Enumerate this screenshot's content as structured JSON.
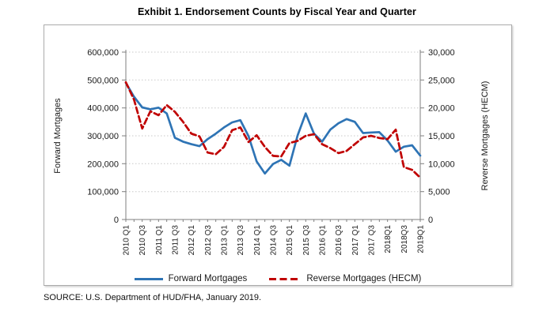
{
  "title": "Exhibit 1. Endorsement Counts by Fiscal Year and Quarter",
  "source": "SOURCE: U.S. Department of HUD/FHA, January 2019.",
  "legend": {
    "forward": "Forward Mortgages",
    "reverse": "Reverse Mortgages (HECM)"
  },
  "colors": {
    "forward": "#2E74B5",
    "reverse": "#C00000",
    "grid": "#c8c8c8",
    "axis": "#7f7f7f",
    "tick_text": "#1a1a1a",
    "box_border": "#ababab"
  },
  "chart_data": {
    "type": "line",
    "title": "Exhibit 1. Endorsement Counts by Fiscal Year and Quarter",
    "grid": "horizontal-dotted",
    "legend_position": "bottom",
    "x_categories": [
      "2010 Q1",
      "2010 Q2",
      "2010 Q3",
      "2010 Q4",
      "2011 Q1",
      "2011 Q2",
      "2011 Q3",
      "2011 Q4",
      "2012 Q1",
      "2012 Q2",
      "2012 Q3",
      "2012 Q4",
      "2013 Q1",
      "2013 Q2",
      "2013 Q3",
      "2013 Q4",
      "2014 Q1",
      "2014 Q2",
      "2014 Q3",
      "2014 Q4",
      "2015 Q1",
      "2015 Q2",
      "2015 Q3",
      "2015 Q4",
      "2016 Q1",
      "2016 Q2",
      "2016 Q3",
      "2016 Q4",
      "2017 Q1",
      "2017 Q2",
      "2017 Q3",
      "2017 Q4",
      "2018 Q1",
      "2018 Q2",
      "2018 Q3",
      "2018 Q4",
      "2019 Q1"
    ],
    "x_tick_labels": [
      "2010 Q1",
      "2010 Q3",
      "2011 Q1",
      "2011 Q3",
      "2012 Q1",
      "2012 Q3",
      "2013 Q1",
      "2013 Q3",
      "2014 Q1",
      "2014 Q3",
      "2015 Q1",
      "2015 Q3",
      "2016 Q1",
      "2016 Q3",
      "2017 Q1",
      "2017 Q3",
      "2018Q1",
      "2018Q3",
      "2019Q1"
    ],
    "left_axis": {
      "label": "Forward Mortgages",
      "min": 0,
      "max": 600000,
      "tick_step": 100000,
      "tick_labels_top_to_bottom": [
        "600,000",
        "500,000",
        "400,000",
        "300,000",
        "200,000",
        "100,000",
        "0"
      ]
    },
    "right_axis": {
      "label": "Reverse Mortgages (HECM)",
      "min": 0,
      "max": 30000,
      "tick_step": 5000,
      "tick_labels_top_to_bottom": [
        "30,000",
        "25,000",
        "20,000",
        "15,000",
        "10,000",
        "5,000",
        "0"
      ]
    },
    "series": [
      {
        "name": "Forward Mortgages",
        "axis": "left",
        "style": "solid",
        "color": "#2E74B5",
        "values": [
          490000,
          440000,
          402000,
          395000,
          401000,
          380000,
          293000,
          279000,
          270000,
          263000,
          288000,
          308000,
          330000,
          348000,
          356000,
          299000,
          208000,
          165000,
          199000,
          214000,
          193000,
          301000,
          380000,
          308000,
          279000,
          322000,
          345000,
          360000,
          350000,
          310000,
          312000,
          313000,
          283000,
          243000,
          261000,
          266000,
          229000
        ]
      },
      {
        "name": "Reverse Mortgages (HECM)",
        "axis": "right",
        "style": "dashed",
        "color": "#C00000",
        "values": [
          24600,
          21500,
          16300,
          19400,
          18700,
          20500,
          19300,
          17500,
          15400,
          14900,
          12000,
          11700,
          13000,
          16000,
          16500,
          13900,
          15100,
          13000,
          11400,
          11300,
          13700,
          14100,
          15000,
          15300,
          13500,
          12800,
          11900,
          12300,
          13500,
          14700,
          15000,
          14600,
          14400,
          16100,
          9400,
          8900,
          7500
        ]
      }
    ]
  }
}
